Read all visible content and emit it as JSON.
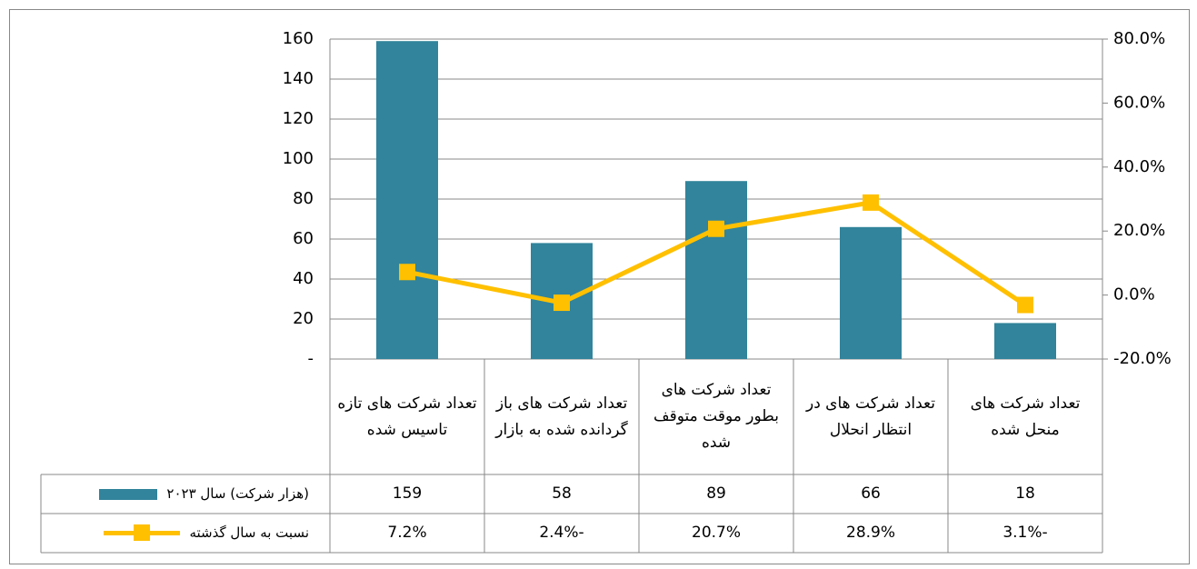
{
  "chart_data": {
    "type": "bar",
    "categories": [
      "تعداد شرکت های تازه تاسیس شده",
      "تعداد شرکت های باز گردانده شده به بازار",
      "تعداد شرکت های بطور موقت متوقف شده",
      "تعداد شرکت های در انتظار انحلال",
      "تعداد شرکت های منحل شده"
    ],
    "series": [
      {
        "name": "(هزار شرکت) سال ۲۰۲۳",
        "color": "#31849b",
        "type": "bar",
        "values": [
          159,
          58,
          89,
          66,
          18
        ]
      },
      {
        "name": "نسبت به سال گذشته",
        "color": "#ffc000",
        "type": "line",
        "axis": "y2",
        "values": [
          7.2,
          -2.4,
          20.7,
          28.9,
          -3.1
        ],
        "value_labels": [
          "7.2%",
          "-2.4%",
          "20.7%",
          "28.9%",
          "-3.1%"
        ]
      }
    ],
    "ylim": [
      0,
      160
    ],
    "yticks": [
      {
        "value": 0,
        "label": "-"
      },
      20,
      40,
      60,
      80,
      100,
      120,
      140,
      160
    ],
    "y2lim": [
      -20,
      80
    ],
    "y2ticks": [
      {
        "value": -20,
        "label": "-20.0%"
      },
      {
        "value": 0,
        "label": "0.0%"
      },
      {
        "value": 20,
        "label": "20.0%"
      },
      {
        "value": 40,
        "label": "40.0%"
      },
      {
        "value": 60,
        "label": "60.0%"
      },
      {
        "value": 80,
        "label": "80.0%"
      }
    ],
    "grid": true,
    "data_table": true
  }
}
